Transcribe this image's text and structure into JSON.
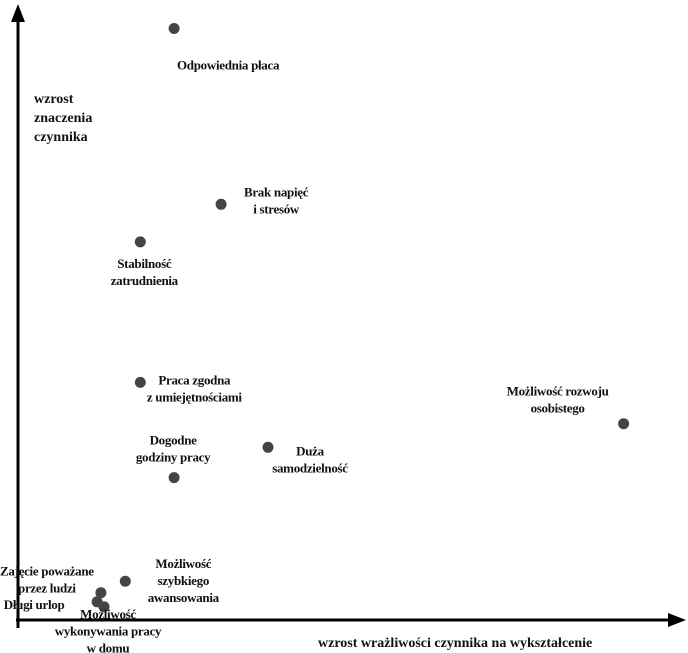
{
  "chart_data": {
    "type": "scatter",
    "title": "",
    "xlabel": "wzrost wrażliwości czynnika na wykształcenie",
    "ylabel": [
      "wzrost",
      "znaczenia",
      "czynnika"
    ],
    "xlim": [
      0,
      100
    ],
    "ylim": [
      0,
      100
    ],
    "grid": false,
    "legend": "none",
    "colors": {
      "point": "#444444",
      "axis": "#000000",
      "text": "#111111"
    },
    "points": [
      {
        "name": "odpowiednia-placa",
        "label": [
          "Odpowiednia płaca"
        ],
        "x": 24.3,
        "y": 97.6
      },
      {
        "name": "brak-napiec",
        "label": [
          "Brak napięć",
          "i stresów"
        ],
        "x": 31.8,
        "y": 68.6
      },
      {
        "name": "stabilnosc-zatrudnienia",
        "label": [
          "Stabilność",
          "zatrudnienia"
        ],
        "x": 18.9,
        "y": 62.4
      },
      {
        "name": "praca-zgodna",
        "label": [
          "Praca zgodna",
          "z umiejętnościami"
        ],
        "x": 18.9,
        "y": 39.2
      },
      {
        "name": "mozliwosc-rozwoju",
        "label": [
          "Możliwość rozwoju",
          "osobistego"
        ],
        "x": 96.1,
        "y": 32.4
      },
      {
        "name": "duza-samodzielnosc",
        "label": [
          "Duża",
          "samodzielność"
        ],
        "x": 39.3,
        "y": 28.5
      },
      {
        "name": "dogodne-godziny",
        "label": [
          "Dogodne",
          "godziny pracy"
        ],
        "x": 24.3,
        "y": 23.5
      },
      {
        "name": "mozliwosc-awansowania",
        "label": [
          "Możliwość",
          "szybkiego",
          "awansowania"
        ],
        "x": 16.5,
        "y": 6.4
      },
      {
        "name": "zajecie-powazane",
        "label": [
          "Zajęcie poważane",
          "przez ludzi"
        ],
        "x": 12.6,
        "y": 4.5
      },
      {
        "name": "dlugi-urlop",
        "label": [
          "Długi urlop"
        ],
        "x": 12.0,
        "y": 3.0
      },
      {
        "name": "praca-w-domu",
        "label": [
          "Możliwość",
          "wykonywania pracy",
          "w domu"
        ],
        "x": 13.1,
        "y": 2.2
      }
    ]
  }
}
